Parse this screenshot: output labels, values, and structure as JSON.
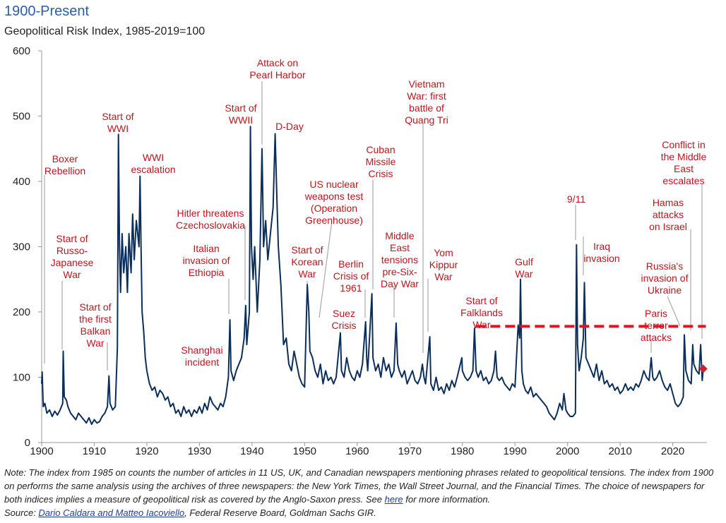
{
  "chart_data": {
    "type": "line",
    "title": "1900-Present",
    "subtitle": "Geopolitical Risk Index, 1985-2019=100",
    "xlim": [
      1900,
      2026.5
    ],
    "xticks": [
      1900,
      1910,
      1920,
      1930,
      1940,
      1950,
      1960,
      1970,
      1980,
      1990,
      2000,
      2010,
      2020
    ],
    "ylim": [
      0,
      600
    ],
    "yticks": [
      0,
      100,
      200,
      300,
      400,
      500,
      600
    ],
    "x": [
      1900,
      1900.1,
      1900.3,
      1900.6,
      1901,
      1901.5,
      1902,
      1902.5,
      1903,
      1903.5,
      1904,
      1904.1,
      1904.3,
      1904.7,
      1905,
      1905.5,
      1906,
      1906.5,
      1907,
      1907.5,
      1908,
      1908.5,
      1909,
      1909.5,
      1910,
      1910.5,
      1911,
      1911.5,
      1912,
      1912.5,
      1912.8,
      1913,
      1913.5,
      1914,
      1914.4,
      1914.6,
      1914.8,
      1915,
      1915.3,
      1915.6,
      1916,
      1916.3,
      1916.6,
      1917,
      1917.3,
      1917.6,
      1918,
      1918.5,
      1918.7,
      1918.9,
      1919.1,
      1919.4,
      1919.7,
      1920,
      1920.5,
      1921,
      1921.5,
      1922,
      1922.5,
      1923,
      1923.5,
      1924,
      1924.5,
      1925,
      1925.5,
      1926,
      1926.5,
      1927,
      1927.5,
      1928,
      1928.5,
      1929,
      1929.5,
      1930,
      1930.5,
      1931,
      1931.5,
      1932,
      1932.5,
      1933,
      1933.5,
      1934,
      1934.5,
      1935,
      1935.5,
      1935.8,
      1936,
      1936.5,
      1937,
      1937.5,
      1938,
      1938.5,
      1938.8,
      1939,
      1939.5,
      1939.7,
      1939.9,
      1940.2,
      1940.5,
      1941,
      1941.5,
      1941.9,
      1942.2,
      1942.6,
      1943,
      1943.5,
      1944,
      1944.4,
      1944.7,
      1945,
      1945.5,
      1946,
      1946.5,
      1947,
      1947.5,
      1948,
      1948.5,
      1949,
      1949.5,
      1950,
      1950.5,
      1950.8,
      1951,
      1951.5,
      1952,
      1952.5,
      1953,
      1953.5,
      1954,
      1954.5,
      1955,
      1955.5,
      1956,
      1956.8,
      1957,
      1957.5,
      1958,
      1958.5,
      1959,
      1959.5,
      1960,
      1960.5,
      1961,
      1961.6,
      1961.8,
      1962,
      1962.8,
      1963,
      1963.5,
      1964,
      1964.5,
      1965,
      1965.5,
      1966,
      1966.5,
      1967,
      1967.4,
      1967.7,
      1968,
      1968.5,
      1969,
      1969.5,
      1970,
      1970.5,
      1971,
      1971.5,
      1972,
      1972.4,
      1972.7,
      1973,
      1973.8,
      1974,
      1974.5,
      1975,
      1975.5,
      1976,
      1976.5,
      1977,
      1977.5,
      1978,
      1978.5,
      1979,
      1979.9,
      1980,
      1980.5,
      1981,
      1981.5,
      1982,
      1982.3,
      1982.6,
      1983,
      1983.5,
      1984,
      1984.5,
      1985,
      1985.5,
      1986,
      1986.3,
      1986.6,
      1987,
      1987.5,
      1988,
      1988.5,
      1989,
      1989.5,
      1990,
      1990.6,
      1990.9,
      1991.05,
      1991.3,
      1991.6,
      1992,
      1992.5,
      1993,
      1993.5,
      1994,
      1994.5,
      1995,
      1995.5,
      1996,
      1996.5,
      1997,
      1997.5,
      1998,
      1998.5,
      1999,
      1999.3,
      1999.7,
      2000,
      2000.5,
      2001,
      2001.5,
      2001.7,
      2001.9,
      2002.2,
      2002.6,
      2003,
      2003.2,
      2003.5,
      2004,
      2004.5,
      2005,
      2005.5,
      2006,
      2006.5,
      2007,
      2007.5,
      2008,
      2008.5,
      2009,
      2009.5,
      2010,
      2010.5,
      2011,
      2011.5,
      2012,
      2012.5,
      2013,
      2013.5,
      2014,
      2014.5,
      2015,
      2015.5,
      2015.9,
      2016.2,
      2016.5,
      2017,
      2017.5,
      2018,
      2018.5,
      2019,
      2019.5,
      2020,
      2020.5,
      2021,
      2021.5,
      2022,
      2022.2,
      2022.5,
      2023,
      2023.5,
      2023.8,
      2024,
      2024.5,
      2025,
      2025.3,
      2025.6,
      2025.8
    ],
    "series": [
      {
        "color": "#0b2e5a",
        "values": [
          90,
          108,
          55,
          60,
          45,
          50,
          40,
          48,
          42,
          50,
          60,
          140,
          70,
          65,
          55,
          45,
          40,
          35,
          45,
          40,
          35,
          30,
          38,
          28,
          35,
          30,
          32,
          40,
          45,
          55,
          102,
          60,
          50,
          55,
          145,
          472,
          300,
          230,
          320,
          260,
          300,
          230,
          320,
          260,
          350,
          280,
          340,
          300,
          408,
          300,
          200,
          170,
          130,
          110,
          90,
          80,
          85,
          70,
          80,
          75,
          65,
          70,
          55,
          60,
          45,
          50,
          40,
          55,
          45,
          50,
          40,
          50,
          45,
          55,
          45,
          60,
          50,
          70,
          60,
          55,
          50,
          60,
          55,
          70,
          100,
          188,
          110,
          95,
          110,
          120,
          130,
          160,
          210,
          150,
          200,
          484,
          300,
          250,
          300,
          200,
          280,
          450,
          300,
          340,
          280,
          320,
          360,
          473,
          380,
          300,
          240,
          150,
          160,
          120,
          110,
          140,
          120,
          100,
          90,
          85,
          242,
          200,
          140,
          130,
          110,
          100,
          120,
          90,
          110,
          95,
          100,
          90,
          100,
          168,
          110,
          100,
          130,
          110,
          100,
          95,
          110,
          100,
          120,
          185,
          130,
          110,
          228,
          130,
          110,
          120,
          100,
          130,
          110,
          120,
          100,
          110,
          183,
          120,
          110,
          100,
          110,
          90,
          100,
          110,
          95,
          90,
          100,
          120,
          100,
          90,
          162,
          90,
          80,
          100,
          80,
          85,
          75,
          90,
          80,
          95,
          85,
          100,
          130,
          110,
          100,
          95,
          100,
          110,
          175,
          110,
          100,
          110,
          95,
          100,
          90,
          95,
          110,
          140,
          100,
          95,
          100,
          90,
          85,
          80,
          90,
          85,
          180,
          160,
          250,
          110,
          90,
          80,
          75,
          85,
          70,
          75,
          70,
          65,
          60,
          55,
          45,
          40,
          35,
          45,
          60,
          50,
          75,
          50,
          45,
          40,
          40,
          45,
          303,
          150,
          110,
          130,
          160,
          245,
          130,
          120,
          110,
          100,
          120,
          95,
          110,
          90,
          95,
          85,
          90,
          80,
          85,
          75,
          80,
          90,
          80,
          85,
          80,
          90,
          85,
          95,
          110,
          100,
          95,
          130,
          100,
          95,
          100,
          110,
          95,
          85,
          80,
          90,
          75,
          60,
          55,
          60,
          70,
          165,
          110,
          95,
          90,
          150,
          120,
          110,
          105,
          150,
          95,
          113
        ]
      }
    ],
    "reference_line": {
      "y": 178,
      "x": [
        1982.5,
        2026.3
      ],
      "color": "#e0141e"
    },
    "highlight": {
      "x": 2025.8,
      "y": 113,
      "color": "#d0202a"
    },
    "annotations": [
      {
        "lines": [
          "Boxer",
          "Rebellion"
        ]
      },
      {
        "lines": [
          "Start of",
          "Russo-",
          "Japanese",
          "War"
        ]
      },
      {
        "lines": [
          "Start of",
          "the first",
          "Balkan",
          "War"
        ]
      },
      {
        "lines": [
          "Start of",
          "WWI"
        ]
      },
      {
        "lines": [
          "WWI",
          "escalation"
        ]
      },
      {
        "lines": [
          "Hitler threatens",
          "Czechoslovakia"
        ]
      },
      {
        "lines": [
          "Italian",
          "invasion of",
          "Ethiopia"
        ]
      },
      {
        "lines": [
          "Shanghai",
          "incident"
        ]
      },
      {
        "lines": [
          "Start of",
          "WWII"
        ]
      },
      {
        "lines": [
          "Attack on",
          "Pearl Harbor"
        ]
      },
      {
        "lines": [
          "D-Day"
        ]
      },
      {
        "lines": [
          "US nuclear",
          "weapons test",
          "(Operation",
          "Greenhouse)"
        ]
      },
      {
        "lines": [
          "Start of",
          "Korean",
          "War"
        ]
      },
      {
        "lines": [
          "Berlin",
          "Crisis of",
          "1961"
        ]
      },
      {
        "lines": [
          "Suez",
          "Crisis"
        ]
      },
      {
        "lines": [
          "Cuban",
          "Missile",
          "Crisis"
        ]
      },
      {
        "lines": [
          "Middle",
          "East",
          "tensions",
          "pre-Six-",
          "Day War"
        ]
      },
      {
        "lines": [
          "Vietnam",
          "War: first",
          "battle of",
          "Quang Tri"
        ]
      },
      {
        "lines": [
          "Yom",
          "Kippur",
          "War"
        ]
      },
      {
        "lines": [
          "Start of",
          "Falklands",
          "War"
        ]
      },
      {
        "lines": [
          "Gulf",
          "War"
        ]
      },
      {
        "lines": [
          "9/11"
        ]
      },
      {
        "lines": [
          "Iraq",
          "invasion"
        ]
      },
      {
        "lines": [
          "Conflict in",
          "the Middle",
          "East",
          "escalates"
        ]
      },
      {
        "lines": [
          "Hamas",
          "attacks",
          "on Israel"
        ]
      },
      {
        "lines": [
          "Russia's",
          "invasion of",
          "Ukraine"
        ]
      },
      {
        "lines": [
          "Paris",
          "terror",
          "attacks"
        ]
      }
    ],
    "note_parts": [
      "Note: The index from 1985 on counts the number of articles in 11 US, UK, and Canadian newspapers mentioning phrases related to geopolitical tensions. The index from 1900 on performs the same analysis using the archives of three newspapers: the New York Times, the Wall Street Journal, and the Financial Times. The choice of newspapers for both indices implies a measure of geopolitical risk as covered by the Anglo-Saxon press. See ",
      "here",
      " for more information."
    ],
    "source_parts": [
      "Source: ",
      "Dario Caldara and Matteo Iacoviello",
      ", Federal Reserve Board, Goldman Sachs GIR."
    ]
  }
}
